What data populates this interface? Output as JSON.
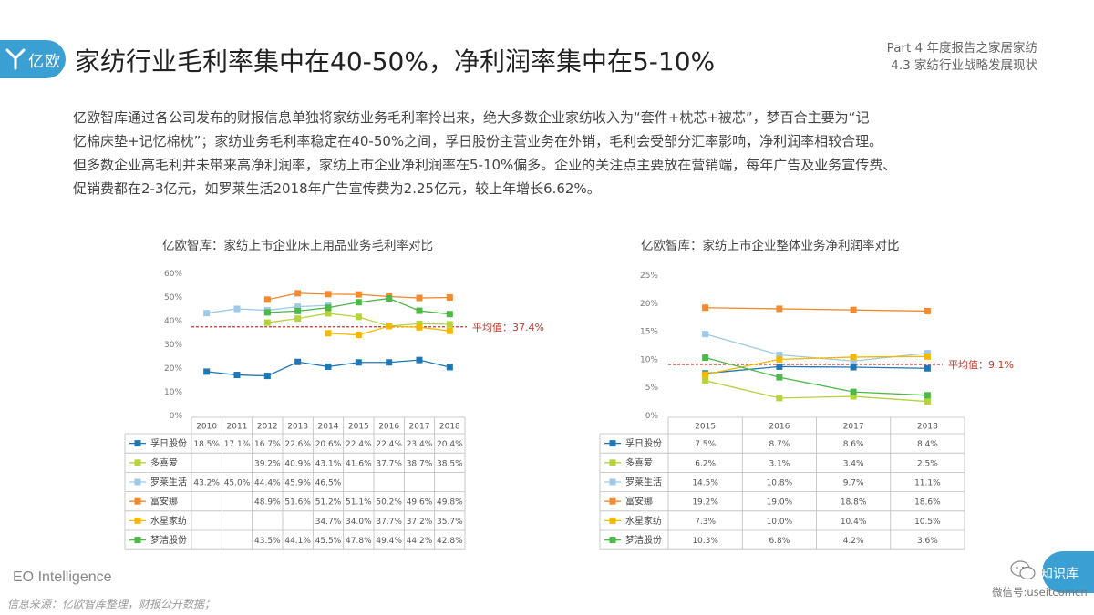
{
  "header": {
    "logo_text": "亿欧",
    "title": "家纺行业毛利率集中在40-50%，净利润率集中在5-10%",
    "part_line1": "Part 4 年度报告之家居家纺",
    "part_line2": "4.3 家纺行业战略发展现状"
  },
  "intro": {
    "line1": "亿欧智库通过各公司发布的财报信息单独将家纺业务毛利率拎出来，绝大多数企业家纺收入为“套件+枕芯+被芯”，梦百合主要为“记",
    "line2": "忆棉床垫+记忆棉枕”；家纺业务毛利率稳定在40-50%之间，孚日股份主营业务在外销，毛利会受部分汇率影响，净利润率相较合理。",
    "line3": "但多数企业高毛利并未带来高净利润率，家纺上市企业净利润率在5-10%偏多。企业的关注点主要放在营销端，每年广告及业务宣传费、",
    "line4": "促销费都在2-3亿元，如罗莱生活2018年广告宣传费为2.25亿元，较上年增长6.62%。"
  },
  "footer": {
    "brand": "EO Intelligence",
    "source": "信息来源：亿欧智库整理，财报公开数据；",
    "watermark_title": "知识库",
    "watermark_id": "微信号:useitcomcn"
  },
  "chart_data": [
    {
      "type": "line",
      "title": "亿欧智库：家纺上市企业床上用品业务毛利率对比",
      "categories": [
        "2010",
        "2011",
        "2012",
        "2013",
        "2014",
        "2015",
        "2016",
        "2017",
        "2018"
      ],
      "y_ticks": [
        "0%",
        "10%",
        "20%",
        "30%",
        "40%",
        "50%",
        "60%"
      ],
      "ylim": [
        0,
        60
      ],
      "average": {
        "value": 37.4,
        "label": "平均值：37.4%",
        "color": "#c0392b"
      },
      "series": [
        {
          "name": "孚日股份",
          "color": "#1f77b4",
          "values": [
            18.5,
            17.1,
            16.7,
            22.6,
            20.6,
            22.4,
            22.4,
            23.4,
            20.4
          ],
          "labels": [
            "18.5%",
            "17.1%",
            "16.7%",
            "22.6%",
            "20.6%",
            "22.4%",
            "22.4%",
            "23.4%",
            "20.4%"
          ]
        },
        {
          "name": "多喜爱",
          "color": "#b5d33a",
          "values": [
            null,
            null,
            39.2,
            40.9,
            43.1,
            41.6,
            37.7,
            38.7,
            38.5
          ],
          "labels": [
            "",
            "",
            "39.2%",
            "40.9%",
            "43.1%",
            "41.6%",
            "37.7%",
            "38.7%",
            "38.5%"
          ]
        },
        {
          "name": "罗莱生活",
          "color": "#9ccae8",
          "values": [
            43.2,
            45.0,
            44.4,
            45.9,
            46.5,
            null,
            null,
            null,
            null
          ],
          "labels": [
            "43.2%",
            "45.0%",
            "44.4%",
            "45.9%",
            "46.5%",
            "",
            "",
            "",
            ""
          ]
        },
        {
          "name": "富安娜",
          "color": "#f28a30",
          "values": [
            null,
            null,
            48.9,
            51.6,
            51.2,
            51.1,
            50.2,
            49.6,
            49.8
          ],
          "labels": [
            "",
            "",
            "48.9%",
            "51.6%",
            "51.2%",
            "51.1%",
            "50.2%",
            "49.6%",
            "49.8%"
          ]
        },
        {
          "name": "水星家纺",
          "color": "#f5b800",
          "values": [
            null,
            null,
            null,
            null,
            34.7,
            34.0,
            37.7,
            37.2,
            35.7
          ],
          "labels": [
            "",
            "",
            "",
            "",
            "34.7%",
            "34.0%",
            "37.7%",
            "37.2%",
            "35.7%"
          ]
        },
        {
          "name": "梦洁股份",
          "color": "#4cb848",
          "values": [
            null,
            null,
            43.5,
            44.1,
            45.5,
            47.8,
            49.4,
            44.2,
            42.8
          ],
          "labels": [
            "",
            "",
            "43.5%",
            "44.1%",
            "45.5%",
            "47.8%",
            "49.4%",
            "44.2%",
            "42.8%"
          ]
        }
      ]
    },
    {
      "type": "line",
      "title": "亿欧智库：家纺上市企业整体业务净利润率对比",
      "categories": [
        "2015",
        "2016",
        "2017",
        "2018"
      ],
      "y_ticks": [
        "0%",
        "5%",
        "10%",
        "15%",
        "20%",
        "25%"
      ],
      "ylim": [
        0,
        25
      ],
      "average": {
        "value": 9.1,
        "label": "平均值：9.1%",
        "color": "#c0392b"
      },
      "series": [
        {
          "name": "孚日股份",
          "color": "#1f77b4",
          "values": [
            7.5,
            8.7,
            8.6,
            8.4
          ],
          "labels": [
            "7.5%",
            "8.7%",
            "8.6%",
            "8.4%"
          ]
        },
        {
          "name": "多喜爱",
          "color": "#b5d33a",
          "values": [
            6.2,
            3.1,
            3.4,
            2.5
          ],
          "labels": [
            "6.2%",
            "3.1%",
            "3.4%",
            "2.5%"
          ]
        },
        {
          "name": "罗莱生活",
          "color": "#9ccae8",
          "values": [
            14.5,
            10.8,
            9.7,
            11.1
          ],
          "labels": [
            "14.5%",
            "10.8%",
            "9.7%",
            "11.1%"
          ]
        },
        {
          "name": "富安娜",
          "color": "#f28a30",
          "values": [
            19.2,
            19.0,
            18.8,
            18.6
          ],
          "labels": [
            "19.2%",
            "19.0%",
            "18.8%",
            "18.6%"
          ]
        },
        {
          "name": "水星家纺",
          "color": "#f5b800",
          "values": [
            7.3,
            10.0,
            10.4,
            10.5
          ],
          "labels": [
            "7.3%",
            "10.0%",
            "10.4%",
            "10.5%"
          ]
        },
        {
          "name": "梦洁股份",
          "color": "#4cb848",
          "values": [
            10.3,
            6.8,
            4.2,
            3.6
          ],
          "labels": [
            "10.3%",
            "6.8%",
            "4.2%",
            "3.6%"
          ]
        }
      ]
    }
  ]
}
